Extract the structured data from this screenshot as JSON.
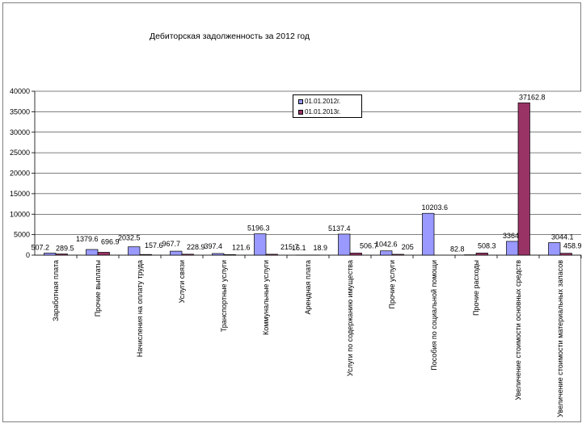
{
  "chart_data": {
    "type": "bar",
    "title": "Дебиторская задолженность за 2012 год",
    "xlabel": "",
    "ylabel": "",
    "ylim": [
      0,
      40000
    ],
    "yticks": [
      0,
      5000,
      10000,
      15000,
      20000,
      25000,
      30000,
      35000,
      40000
    ],
    "grid": true,
    "legend_position": "top-center",
    "categories": [
      "Заработная плата",
      "Прочие выплаты",
      "Начисления на оплату труда",
      "Услуги связи",
      "Транспортные услуги",
      "Коммунальные услуги",
      "Арендная плата",
      "Услуги по содержанию имущества",
      "Прочие услуги",
      "Пособия по социальной помощи",
      "Прочие расходы",
      "Увеличение стоимости основных средств",
      "Увеличение стоимости материальных запасов"
    ],
    "series": [
      {
        "name": "01.01.2012г.",
        "color": "#9999ff",
        "values": [
          507.2,
          1379.6,
          2032.5,
          967.7,
          397.4,
          5196.3,
          16.1,
          5137.4,
          1042.6,
          10203.6,
          82.8,
          3364.5,
          3044.1
        ],
        "labels": [
          "507.2",
          "1379.6",
          "2032.5",
          "967.7",
          "397.4",
          "5196.3",
          "16.1",
          "5137.4",
          "1042.6",
          "10203.6",
          "82.8",
          "3364.5",
          "3044.1"
        ]
      },
      {
        "name": "01.01.2013г.",
        "color": "#993366",
        "values": [
          289.5,
          696.9,
          157.6,
          228.9,
          121.6,
          215.7,
          18.9,
          506.7,
          205,
          0,
          508.3,
          37162.8,
          458.9
        ],
        "labels": [
          "289.5",
          "696.9",
          "157.6",
          "228.9",
          "121.6",
          "215.7",
          "18.9",
          "506.7",
          "205",
          "",
          "508.3",
          "37162.8",
          "458.9"
        ]
      }
    ]
  }
}
